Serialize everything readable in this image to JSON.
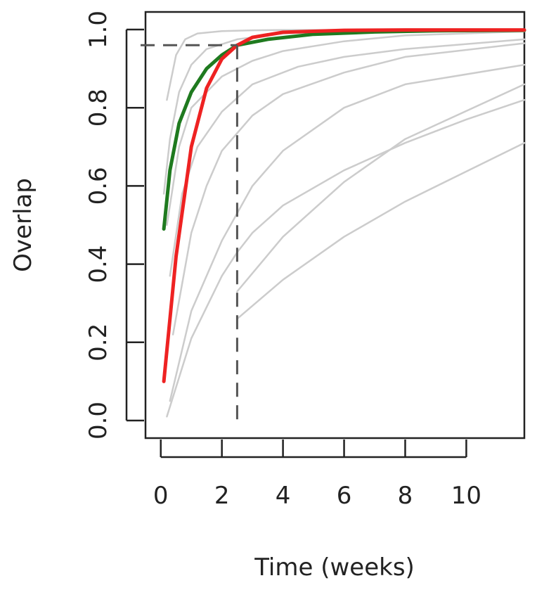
{
  "chart_data": {
    "type": "line",
    "xlabel": "Time (weeks)",
    "ylabel": "Overlap",
    "xlim": [
      -0.5,
      11.9
    ],
    "ylim": [
      -0.045,
      1.045
    ],
    "x_ticks": [
      0,
      2,
      4,
      6,
      8,
      10
    ],
    "y_ticks": [
      0.0,
      0.2,
      0.4,
      0.6,
      0.8,
      1.0
    ],
    "y_tick_labels": [
      "0.0",
      "0.2",
      "0.4",
      "0.6",
      "0.8",
      "1.0"
    ],
    "grid": false,
    "reference_lines": {
      "x": 2.5,
      "y": 0.96
    },
    "colors": {
      "highlight_green": "#1f7a1f",
      "highlight_red": "#ee2222",
      "background": "#cccccc"
    },
    "series": [
      {
        "role": "highlight-green",
        "x": [
          0.1,
          0.3,
          0.6,
          1.0,
          1.5,
          2.0,
          2.5,
          3.5,
          5.0,
          7.0,
          9.0,
          11.9
        ],
        "y": [
          0.49,
          0.64,
          0.76,
          0.84,
          0.9,
          0.935,
          0.96,
          0.975,
          0.988,
          0.994,
          0.997,
          0.998
        ]
      },
      {
        "role": "highlight-red",
        "x": [
          0.1,
          0.5,
          1.0,
          1.5,
          2.0,
          2.5,
          3.0,
          4.0,
          6.0,
          8.0,
          11.9
        ],
        "y": [
          0.1,
          0.42,
          0.7,
          0.85,
          0.925,
          0.96,
          0.98,
          0.993,
          0.998,
          0.999,
          0.999
        ]
      },
      {
        "role": "background",
        "x": [
          0.2,
          0.5,
          0.8,
          1.2,
          2.0,
          3.0,
          4.0,
          6.0,
          11.9
        ],
        "y": [
          0.82,
          0.935,
          0.975,
          0.99,
          0.996,
          0.998,
          0.999,
          0.999,
          0.999
        ]
      },
      {
        "role": "background",
        "x": [
          0.1,
          0.3,
          0.6,
          1.0,
          1.5,
          2.5,
          4.0,
          6.0,
          11.9
        ],
        "y": [
          0.58,
          0.72,
          0.84,
          0.91,
          0.95,
          0.975,
          0.99,
          0.996,
          0.999
        ]
      },
      {
        "role": "background",
        "x": [
          0.2,
          0.6,
          1.0,
          2.0,
          3.0,
          4.0,
          6.0,
          8.0,
          11.9
        ],
        "y": [
          0.5,
          0.7,
          0.8,
          0.88,
          0.92,
          0.945,
          0.97,
          0.985,
          0.995
        ]
      },
      {
        "role": "background",
        "x": [
          0.3,
          0.7,
          1.2,
          2.0,
          3.0,
          4.5,
          6.0,
          8.0,
          11.9
        ],
        "y": [
          0.37,
          0.58,
          0.7,
          0.79,
          0.86,
          0.905,
          0.93,
          0.95,
          0.975
        ]
      },
      {
        "role": "background",
        "x": [
          0.4,
          1.0,
          1.5,
          2.0,
          3.0,
          4.0,
          6.0,
          8.0,
          11.9
        ],
        "y": [
          0.22,
          0.48,
          0.6,
          0.69,
          0.78,
          0.835,
          0.89,
          0.93,
          0.965
        ]
      },
      {
        "role": "background",
        "x": [
          0.3,
          1.0,
          2.0,
          3.0,
          4.0,
          6.0,
          8.0,
          11.9
        ],
        "y": [
          0.05,
          0.28,
          0.46,
          0.6,
          0.69,
          0.8,
          0.86,
          0.91
        ]
      },
      {
        "role": "background",
        "x": [
          0.2,
          1.0,
          2.0,
          2.5,
          3.0,
          4.0,
          6.0,
          8.0,
          10.0,
          11.9
        ],
        "y": [
          0.01,
          0.21,
          0.37,
          0.43,
          0.48,
          0.55,
          0.64,
          0.71,
          0.77,
          0.82
        ]
      },
      {
        "role": "background",
        "x": [
          2.5,
          4.0,
          6.0,
          8.0,
          11.9
        ],
        "y": [
          0.33,
          0.47,
          0.61,
          0.72,
          0.86
        ]
      },
      {
        "role": "background",
        "x": [
          2.5,
          4.0,
          6.0,
          8.0,
          11.9
        ],
        "y": [
          0.26,
          0.36,
          0.47,
          0.56,
          0.71
        ]
      }
    ]
  }
}
